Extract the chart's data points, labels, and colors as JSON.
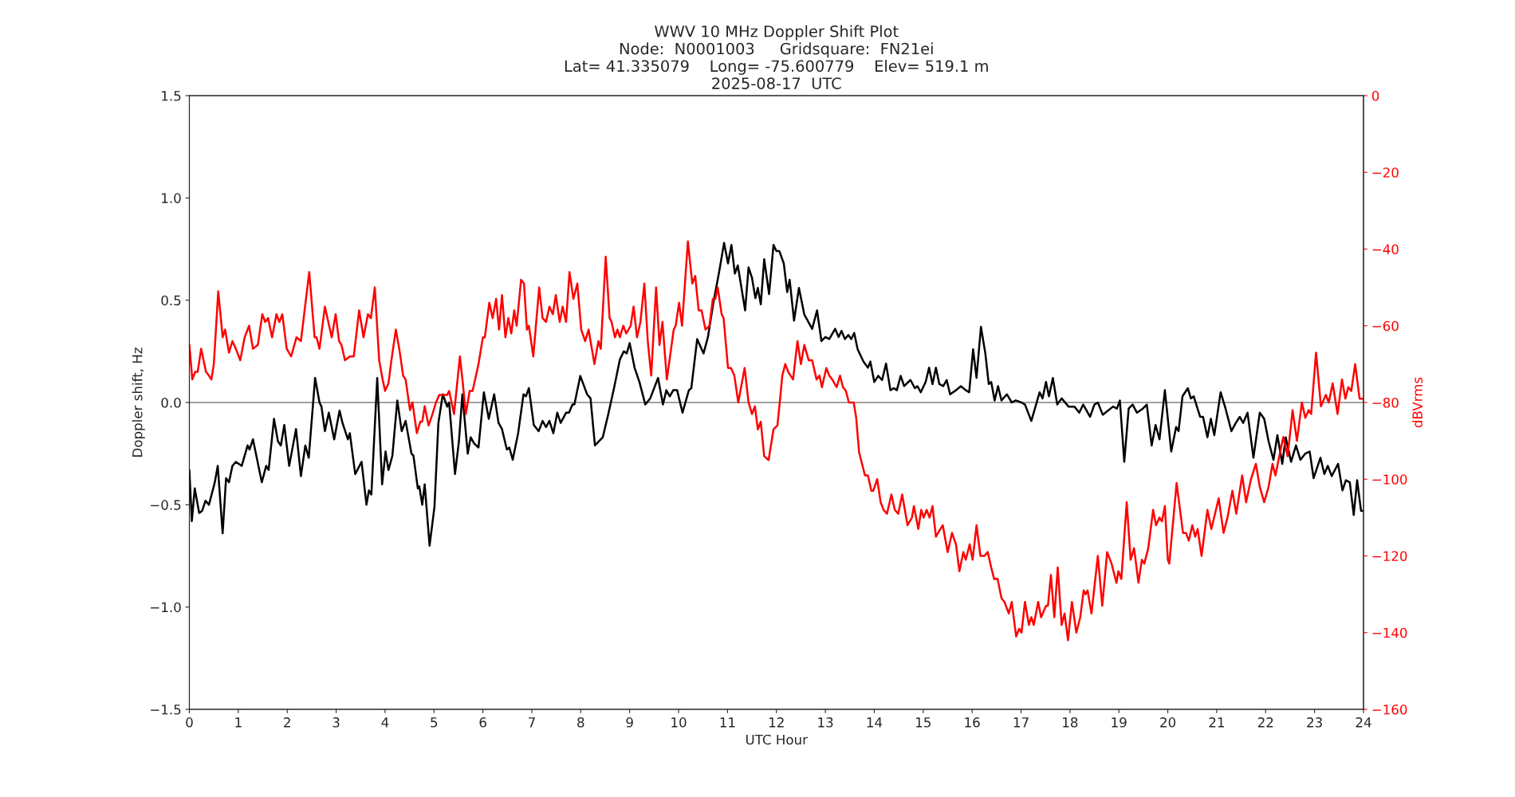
{
  "chart_data": {
    "type": "line",
    "title": "WWV 10 MHz Doppler Shift Plot",
    "subtitle": "Node:  N0001003     Gridsquare:  FN21ei\nLat= 41.335079    Long= -75.600779    Elev= 519.1 m\n2025-08-17  UTC",
    "xlabel": "UTC Hour",
    "ylabel": "Doppler shift, Hz",
    "y2label": "dBVrms",
    "xlim": [
      0,
      24
    ],
    "xticks": [
      0,
      1,
      2,
      3,
      4,
      5,
      6,
      7,
      8,
      9,
      10,
      11,
      12,
      13,
      14,
      15,
      16,
      17,
      18,
      19,
      20,
      21,
      22,
      23,
      24
    ],
    "ylim": [
      -1.5,
      1.5
    ],
    "yticks": [
      {
        "value": -1.5,
        "label": "−1.5"
      },
      {
        "value": -1.0,
        "label": "−1.0"
      },
      {
        "value": -0.5,
        "label": "−0.5"
      },
      {
        "value": 0.0,
        "label": "0.0"
      },
      {
        "value": 0.5,
        "label": "0.5"
      },
      {
        "value": 1.0,
        "label": "1.0"
      },
      {
        "value": 1.5,
        "label": "1.5"
      }
    ],
    "y2lim": [
      -160,
      0
    ],
    "y2ticks": [
      {
        "value": -160,
        "label": "−160"
      },
      {
        "value": -140,
        "label": "−140"
      },
      {
        "value": -120,
        "label": "−120"
      },
      {
        "value": -100,
        "label": "−100"
      },
      {
        "value": -80,
        "label": "−80"
      },
      {
        "value": -60,
        "label": "−60"
      },
      {
        "value": -40,
        "label": "−40"
      },
      {
        "value": -20,
        "label": "−20"
      },
      0
    ],
    "grid": false,
    "legend": false,
    "ref_lines": [
      {
        "axis": "y",
        "value": 0,
        "color": "#808080"
      }
    ],
    "series": [
      {
        "color": "#000000",
        "x": [
          0,
          0.05,
          0.11,
          0.2,
          0.26,
          0.33,
          0.4,
          0.52,
          0.58,
          0.68,
          0.75,
          0.81,
          0.88,
          0.95,
          1.07,
          1.19,
          1.23,
          1.3,
          1.48,
          1.57,
          1.62,
          1.73,
          1.81,
          1.87,
          1.94,
          2.04,
          2.18,
          2.28,
          2.37,
          2.44,
          2.57,
          2.66,
          2.7,
          2.77,
          2.85,
          2.96,
          3.07,
          3.13,
          3.24,
          3.28,
          3.39,
          3.52,
          3.62,
          3.67,
          3.72,
          3.84,
          3.94,
          4.01,
          4.07,
          4.15,
          4.25,
          4.34,
          4.42,
          4.54,
          4.58,
          4.67,
          4.7,
          4.76,
          4.81,
          4.91,
          5.01,
          5.09,
          5.18,
          5.27,
          5.31,
          5.43,
          5.51,
          5.58,
          5.69,
          5.75,
          5.82,
          5.91,
          6.02,
          6.12,
          6.23,
          6.32,
          6.39,
          6.49,
          6.54,
          6.61,
          6.72,
          6.83,
          6.88,
          6.94,
          7.04,
          7.14,
          7.22,
          7.29,
          7.36,
          7.44,
          7.52,
          7.59,
          7.7,
          7.76,
          7.83,
          7.87,
          7.99,
          8.13,
          8.2,
          8.29,
          8.45,
          8.56,
          8.68,
          8.8,
          8.88,
          8.94,
          9.0,
          9.1,
          9.2,
          9.32,
          9.42,
          9.58,
          9.68,
          9.75,
          9.82,
          9.89,
          9.97,
          10.08,
          10.21,
          10.26,
          10.38,
          10.51,
          10.6,
          10.72,
          10.83,
          10.93,
          11.01,
          11.08,
          11.15,
          11.21,
          11.36,
          11.43,
          11.5,
          11.57,
          11.62,
          11.68,
          11.75,
          11.85,
          11.94,
          12.0,
          12.06,
          12.15,
          12.22,
          12.27,
          12.36,
          12.46,
          12.57,
          12.73,
          12.83,
          12.92,
          13.0,
          13.08,
          13.2,
          13.27,
          13.33,
          13.4,
          13.47,
          13.53,
          13.59,
          13.66,
          13.78,
          13.87,
          13.92,
          14.0,
          14.08,
          14.16,
          14.24,
          14.33,
          14.4,
          14.46,
          14.54,
          14.61,
          14.74,
          14.83,
          14.88,
          14.95,
          15.05,
          15.12,
          15.19,
          15.26,
          15.33,
          15.41,
          15.48,
          15.55,
          15.67,
          15.77,
          15.87,
          15.94,
          16.02,
          16.09,
          16.18,
          16.27,
          16.34,
          16.39,
          16.46,
          16.53,
          16.6,
          16.71,
          16.81,
          16.89,
          17.01,
          17.08,
          17.21,
          17.38,
          17.44,
          17.51,
          17.57,
          17.65,
          17.74,
          17.83,
          17.97,
          18.09,
          18.19,
          18.27,
          18.41,
          18.5,
          18.57,
          18.67,
          18.88,
          18.96,
          19.02,
          19.11,
          19.2,
          19.28,
          19.37,
          19.49,
          19.57,
          19.67,
          19.75,
          19.83,
          19.94,
          20.07,
          20.17,
          20.22,
          20.3,
          20.41,
          20.47,
          20.53,
          20.66,
          20.72,
          20.81,
          20.88,
          20.95,
          21.08,
          21.18,
          21.3,
          21.39,
          21.47,
          21.54,
          21.63,
          21.75,
          21.88,
          21.97,
          22.06,
          22.16,
          22.24,
          22.34,
          22.41,
          22.52,
          22.62,
          22.71,
          22.81,
          22.9,
          22.98,
          23.12,
          23.2,
          23.27,
          23.35,
          23.48,
          23.57,
          23.64,
          23.72,
          23.8,
          23.87,
          23.95,
          24.0
        ],
        "values": [
          -0.33,
          -0.58,
          -0.42,
          -0.54,
          -0.53,
          -0.48,
          -0.5,
          -0.39,
          -0.31,
          -0.64,
          -0.37,
          -0.39,
          -0.31,
          -0.29,
          -0.31,
          -0.21,
          -0.23,
          -0.18,
          -0.39,
          -0.31,
          -0.33,
          -0.08,
          -0.19,
          -0.21,
          -0.11,
          -0.31,
          -0.13,
          -0.36,
          -0.21,
          -0.27,
          0.12,
          0.0,
          -0.02,
          -0.14,
          -0.05,
          -0.18,
          -0.04,
          -0.1,
          -0.18,
          -0.15,
          -0.35,
          -0.29,
          -0.5,
          -0.43,
          -0.45,
          0.12,
          -0.4,
          -0.24,
          -0.33,
          -0.26,
          0.01,
          -0.14,
          -0.09,
          -0.25,
          -0.26,
          -0.42,
          -0.41,
          -0.5,
          -0.4,
          -0.7,
          -0.51,
          -0.1,
          0.04,
          -0.02,
          0.0,
          -0.35,
          -0.19,
          0.04,
          -0.25,
          -0.17,
          -0.2,
          -0.22,
          0.05,
          -0.08,
          0.04,
          -0.1,
          -0.13,
          -0.23,
          -0.22,
          -0.28,
          -0.15,
          0.04,
          0.03,
          0.07,
          -0.11,
          -0.14,
          -0.09,
          -0.12,
          -0.09,
          -0.15,
          -0.05,
          -0.1,
          -0.05,
          -0.05,
          -0.01,
          -0.01,
          0.13,
          0.04,
          0.02,
          -0.21,
          -0.17,
          -0.06,
          0.07,
          0.21,
          0.25,
          0.24,
          0.29,
          0.17,
          0.1,
          -0.01,
          0.02,
          0.12,
          -0.01,
          0.06,
          0.03,
          0.06,
          0.06,
          -0.05,
          0.06,
          0.07,
          0.31,
          0.24,
          0.32,
          0.5,
          0.64,
          0.78,
          0.68,
          0.77,
          0.63,
          0.67,
          0.45,
          0.66,
          0.61,
          0.51,
          0.56,
          0.48,
          0.7,
          0.53,
          0.77,
          0.74,
          0.74,
          0.68,
          0.54,
          0.6,
          0.4,
          0.56,
          0.43,
          0.36,
          0.45,
          0.3,
          0.32,
          0.31,
          0.36,
          0.32,
          0.35,
          0.31,
          0.33,
          0.31,
          0.34,
          0.26,
          0.2,
          0.17,
          0.2,
          0.1,
          0.13,
          0.11,
          0.19,
          0.06,
          0.07,
          0.06,
          0.13,
          0.08,
          0.11,
          0.07,
          0.08,
          0.05,
          0.1,
          0.17,
          0.09,
          0.17,
          0.09,
          0.08,
          0.11,
          0.04,
          0.06,
          0.08,
          0.06,
          0.05,
          0.26,
          0.12,
          0.37,
          0.24,
          0.09,
          0.1,
          0.01,
          0.08,
          0.01,
          0.04,
          0.0,
          0.01,
          0.0,
          -0.01,
          -0.09,
          0.05,
          0.02,
          0.1,
          0.03,
          0.12,
          -0.01,
          0.02,
          -0.02,
          -0.02,
          -0.05,
          -0.01,
          -0.07,
          -0.01,
          0.0,
          -0.06,
          -0.02,
          -0.03,
          0.01,
          -0.29,
          -0.03,
          -0.01,
          -0.05,
          -0.03,
          -0.01,
          -0.21,
          -0.11,
          -0.18,
          0.06,
          -0.24,
          -0.12,
          -0.14,
          0.03,
          0.07,
          0.02,
          0.03,
          -0.07,
          -0.07,
          -0.17,
          -0.08,
          -0.16,
          0.05,
          -0.03,
          -0.14,
          -0.1,
          -0.07,
          -0.1,
          -0.05,
          -0.27,
          -0.05,
          -0.08,
          -0.19,
          -0.28,
          -0.16,
          -0.3,
          -0.17,
          -0.29,
          -0.21,
          -0.28,
          -0.25,
          -0.24,
          -0.37,
          -0.27,
          -0.35,
          -0.31,
          -0.36,
          -0.3,
          -0.43,
          -0.38,
          -0.39,
          -0.55,
          -0.38,
          -0.53,
          -0.53
        ]
      },
      {
        "color": "#ff0000",
        "axis": "y2",
        "x": [
          0,
          0.06,
          0.12,
          0.17,
          0.24,
          0.34,
          0.4,
          0.45,
          0.5,
          0.59,
          0.68,
          0.73,
          0.81,
          0.88,
          0.95,
          1.04,
          1.13,
          1.22,
          1.3,
          1.4,
          1.49,
          1.55,
          1.61,
          1.69,
          1.78,
          1.84,
          1.9,
          1.99,
          2.08,
          2.19,
          2.28,
          2.45,
          2.56,
          2.6,
          2.66,
          2.77,
          2.91,
          2.99,
          3.06,
          3.11,
          3.18,
          3.28,
          3.36,
          3.47,
          3.56,
          3.65,
          3.71,
          3.79,
          3.88,
          3.95,
          4.0,
          4.07,
          4.13,
          4.22,
          4.29,
          4.37,
          4.42,
          4.51,
          4.56,
          4.65,
          4.72,
          4.76,
          4.81,
          4.89,
          4.97,
          5.04,
          5.11,
          5.2,
          5.27,
          5.31,
          5.41,
          5.53,
          5.59,
          5.65,
          5.73,
          5.79,
          5.91,
          6.0,
          6.04,
          6.13,
          6.2,
          6.27,
          6.33,
          6.39,
          6.46,
          6.52,
          6.58,
          6.64,
          6.69,
          6.78,
          6.84,
          6.9,
          6.94,
          7.03,
          7.15,
          7.22,
          7.29,
          7.36,
          7.43,
          7.49,
          7.57,
          7.63,
          7.7,
          7.77,
          7.85,
          7.93,
          8.01,
          8.09,
          8.16,
          8.2,
          8.28,
          8.36,
          8.41,
          8.51,
          8.59,
          8.63,
          8.7,
          8.75,
          8.8,
          8.87,
          8.93,
          9.02,
          9.08,
          9.15,
          9.22,
          9.3,
          9.37,
          9.44,
          9.54,
          9.61,
          9.67,
          9.76,
          9.9,
          9.94,
          10.01,
          10.07,
          10.19,
          10.28,
          10.34,
          10.41,
          10.47,
          10.55,
          10.63,
          10.7,
          10.75,
          10.8,
          10.88,
          10.92,
          11.01,
          11.07,
          11.14,
          11.22,
          11.35,
          11.43,
          11.5,
          11.56,
          11.62,
          11.68,
          11.75,
          11.84,
          11.94,
          12.02,
          12.06,
          12.12,
          12.18,
          12.24,
          12.29,
          12.34,
          12.43,
          12.5,
          12.57,
          12.66,
          12.73,
          12.82,
          12.88,
          12.93,
          13.02,
          13.08,
          13.14,
          13.23,
          13.3,
          13.36,
          13.42,
          13.48,
          13.58,
          13.63,
          13.69,
          13.73,
          13.81,
          13.87,
          13.94,
          13.98,
          14.06,
          14.13,
          14.19,
          14.26,
          14.35,
          14.42,
          14.49,
          14.57,
          14.68,
          14.77,
          14.81,
          14.9,
          14.96,
          15.01,
          15.07,
          15.13,
          15.19,
          15.26,
          15.35,
          15.4,
          15.5,
          15.59,
          15.67,
          15.74,
          15.82,
          15.87,
          15.95,
          16.01,
          16.09,
          16.17,
          16.25,
          16.32,
          16.39,
          16.45,
          16.52,
          16.6,
          16.66,
          16.75,
          16.81,
          16.9,
          16.96,
          17.01,
          17.08,
          17.16,
          17.21,
          17.26,
          17.35,
          17.41,
          17.51,
          17.55,
          17.61,
          17.68,
          17.75,
          17.83,
          17.89,
          17.96,
          18.04,
          18.13,
          18.21,
          18.28,
          18.32,
          18.36,
          18.44,
          18.57,
          18.66,
          18.76,
          18.85,
          18.95,
          18.99,
          19.05,
          19.16,
          19.24,
          19.31,
          19.4,
          19.47,
          19.52,
          19.6,
          19.7,
          19.76,
          19.83,
          19.88,
          19.94,
          20.0,
          20.03,
          20.18,
          20.31,
          20.37,
          20.43,
          20.5,
          20.56,
          20.61,
          20.69,
          20.81,
          20.89,
          21.04,
          21.14,
          21.22,
          21.32,
          21.4,
          21.52,
          21.6,
          21.7,
          21.8,
          21.88,
          21.97,
          22.06,
          22.14,
          22.2,
          22.36,
          22.45,
          22.55,
          22.64,
          22.74,
          22.81,
          22.88,
          22.93,
          23.03,
          23.13,
          23.23,
          23.29,
          23.37,
          23.47,
          23.56,
          23.63,
          23.69,
          23.75,
          23.83,
          23.92,
          24.0
        ],
        "values": [
          -65,
          -74,
          -72,
          -72,
          -66,
          -72,
          -73,
          -74,
          -70,
          -51,
          -63,
          -61,
          -67,
          -64,
          -66,
          -69,
          -63,
          -60,
          -66,
          -65,
          -57,
          -59,
          -58,
          -63,
          -57,
          -59,
          -57,
          -66,
          -68,
          -63,
          -64,
          -46,
          -63,
          -63,
          -66,
          -55,
          -63,
          -57,
          -64,
          -65,
          -69,
          -68,
          -68,
          -56,
          -63,
          -57,
          -58,
          -50,
          -69,
          -74,
          -77,
          -75,
          -69,
          -61,
          -66,
          -73,
          -74,
          -82,
          -80,
          -88,
          -85,
          -85,
          -81,
          -86,
          -83,
          -80,
          -78,
          -78,
          -78,
          -77,
          -83,
          -68,
          -75,
          -83,
          -77,
          -77,
          -70,
          -63,
          -63,
          -54,
          -58,
          -53,
          -61,
          -52,
          -63,
          -58,
          -62,
          -56,
          -60,
          -48,
          -49,
          -61,
          -60,
          -68,
          -50,
          -58,
          -59,
          -55,
          -57,
          -52,
          -59,
          -55,
          -59,
          -46,
          -53,
          -49,
          -61,
          -64,
          -61,
          -64,
          -70,
          -64,
          -66,
          -42,
          -58,
          -59,
          -63,
          -61,
          -63,
          -60,
          -62,
          -60,
          -55,
          -63,
          -59,
          -49,
          -64,
          -73,
          -50,
          -65,
          -59,
          -74,
          -61,
          -60,
          -54,
          -60,
          -38,
          -49,
          -47,
          -56,
          -56,
          -61,
          -60,
          -53,
          -53,
          -50,
          -57,
          -58,
          -71,
          -71,
          -73,
          -80,
          -71,
          -80,
          -83,
          -81,
          -87,
          -85,
          -94,
          -95,
          -87,
          -86,
          -81,
          -73,
          -70,
          -72,
          -73,
          -74,
          -64,
          -70,
          -65,
          -69,
          -69,
          -74,
          -73,
          -76,
          -71,
          -73,
          -74,
          -76,
          -73,
          -76,
          -77,
          -80,
          -80,
          -84,
          -93,
          -95,
          -99,
          -99,
          -103,
          -103,
          -100,
          -106,
          -108,
          -109,
          -104,
          -108,
          -109,
          -104,
          -112,
          -110,
          -107,
          -113,
          -108,
          -110,
          -108,
          -110,
          -107,
          -115,
          -113,
          -112,
          -119,
          -114,
          -117,
          -124,
          -119,
          -121,
          -117,
          -121,
          -112,
          -120,
          -120,
          -119,
          -123,
          -126,
          -126,
          -131,
          -132,
          -135,
          -132,
          -141,
          -139,
          -140,
          -132,
          -138,
          -136,
          -138,
          -132,
          -136,
          -133,
          -133,
          -125,
          -136,
          -123,
          -138,
          -135,
          -142,
          -132,
          -140,
          -136,
          -129,
          -130,
          -129,
          -135,
          -120,
          -133,
          -119,
          -122,
          -127,
          -124,
          -126,
          -106,
          -121,
          -118,
          -127,
          -121,
          -122,
          -118,
          -108,
          -112,
          -110,
          -111,
          -107,
          -121,
          -122,
          -101,
          -114,
          -114,
          -116,
          -112,
          -115,
          -113,
          -120,
          -108,
          -113,
          -105,
          -114,
          -110,
          -103,
          -109,
          -99,
          -106,
          -100,
          -96,
          -102,
          -106,
          -102,
          -96,
          -99,
          -89,
          -94,
          -82,
          -90,
          -80,
          -84,
          -82,
          -83,
          -67,
          -81,
          -78,
          -80,
          -75,
          -83,
          -74,
          -79,
          -76,
          -77,
          -70,
          -79,
          -79
        ]
      }
    ]
  }
}
